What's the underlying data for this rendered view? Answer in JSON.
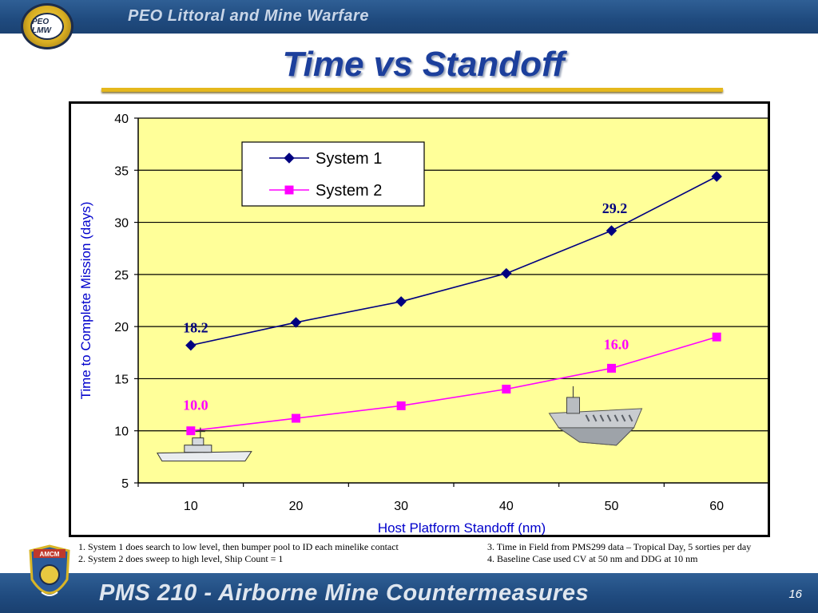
{
  "header": {
    "org_title": "PEO Littoral and Mine Warfare",
    "logo_text": "PEO LMW"
  },
  "slide_title": "Time vs Standoff",
  "chart_data": {
    "type": "line",
    "xlabel": "Host Platform Standoff (nm)",
    "ylabel": "Time to Complete Mission (days)",
    "x": [
      10,
      20,
      30,
      40,
      50,
      60
    ],
    "x_tick_labels": [
      "10",
      "20",
      "30",
      "40",
      "50",
      "60"
    ],
    "ylim": [
      5,
      40
    ],
    "y_ticks": [
      5,
      10,
      15,
      20,
      25,
      30,
      35,
      40
    ],
    "y_tick_labels": [
      "5",
      "10",
      "15",
      "20",
      "25",
      "30",
      "35",
      "40"
    ],
    "grid": "horizontal",
    "plot_background": "#ffff99",
    "legend_position": "top-center",
    "series": [
      {
        "name": "System 1",
        "color": "#000080",
        "marker": "diamond",
        "values": [
          18.2,
          20.4,
          22.4,
          25.1,
          29.2,
          34.4
        ]
      },
      {
        "name": "System 2",
        "color": "#ff00ff",
        "marker": "square",
        "values": [
          10.0,
          11.2,
          12.4,
          14.0,
          16.0,
          19.0
        ]
      }
    ],
    "annotations": [
      {
        "text": "18.2",
        "x": 10,
        "y": 18.2,
        "series": "System 1",
        "color": "#000080"
      },
      {
        "text": "29.2",
        "x": 50,
        "y": 29.2,
        "series": "System 1",
        "color": "#000080"
      },
      {
        "text": "10.0",
        "x": 10,
        "y": 10.0,
        "series": "System 2",
        "color": "#ff00ff"
      },
      {
        "text": "16.0",
        "x": 50,
        "y": 16.0,
        "series": "System 2",
        "color": "#ff00ff"
      }
    ],
    "images": [
      {
        "name": "destroyer-ship-icon",
        "near_x": 10
      },
      {
        "name": "aircraft-carrier-icon",
        "near_x": 50
      }
    ]
  },
  "notes": {
    "left": [
      "1.  System 1 does search to low level, then bumper pool to ID each minelike contact",
      "2.  System 2 does sweep to high level, Ship Count = 1"
    ],
    "right": [
      "3. Time in Field from PMS299 data – Tropical Day, 5 sorties per day",
      "4. Baseline Case used CV at 50 nm and DDG at 10 nm"
    ]
  },
  "footer": {
    "title": "PMS 210 - Airborne Mine Countermeasures",
    "badge_text": "AMCM",
    "page_number": "16"
  }
}
